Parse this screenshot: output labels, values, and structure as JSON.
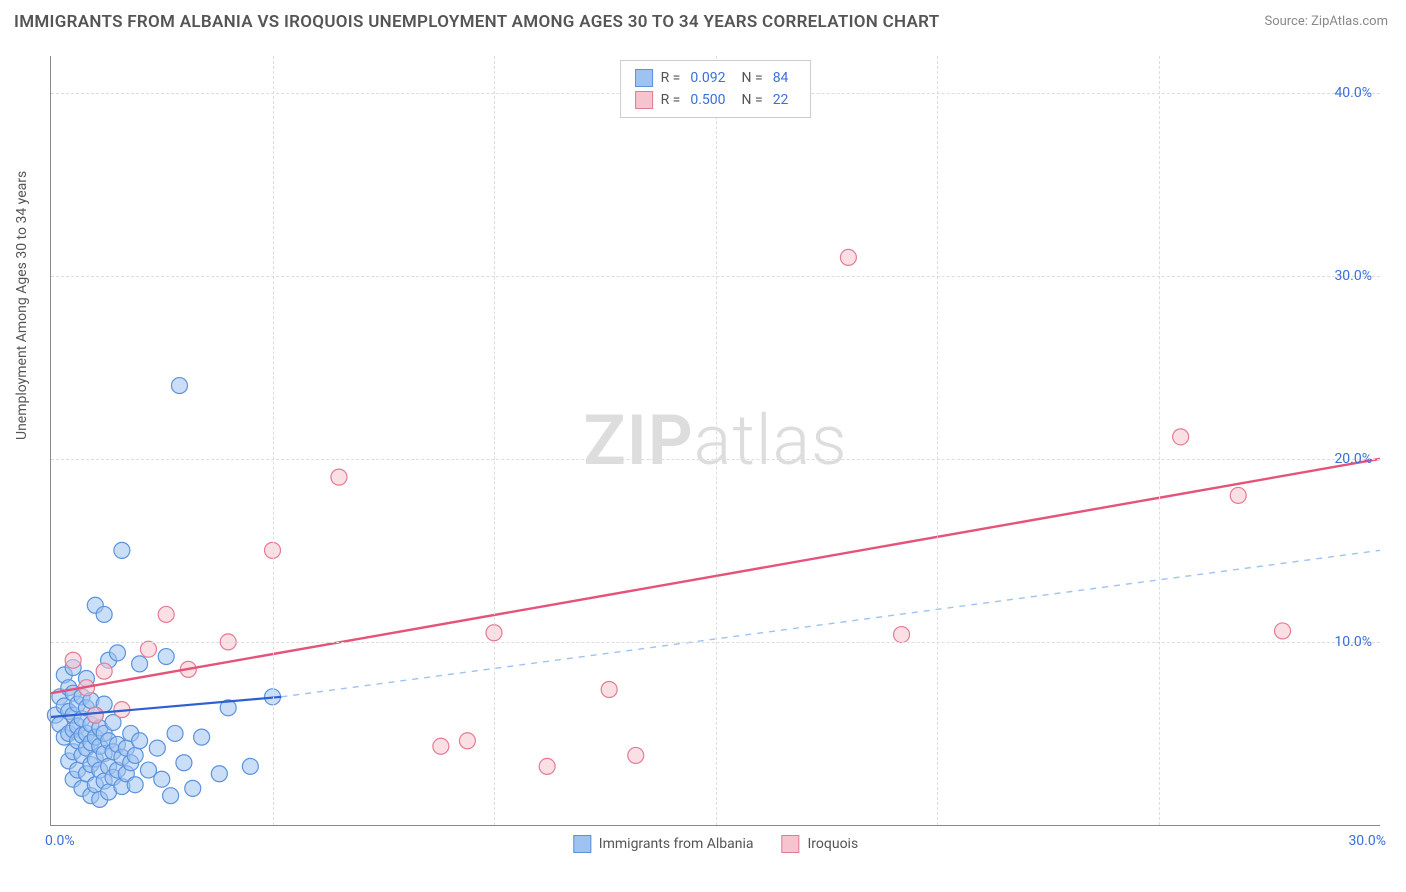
{
  "title": "IMMIGRANTS FROM ALBANIA VS IROQUOIS UNEMPLOYMENT AMONG AGES 30 TO 34 YEARS CORRELATION CHART",
  "source_label": "Source: ZipAtlas.com",
  "watermark_a": "ZIP",
  "watermark_b": "atlas",
  "y_axis_label": "Unemployment Among Ages 30 to 34 years",
  "chart": {
    "type": "scatter",
    "background_color": "#ffffff",
    "grid_color": "#dddddd",
    "axis_color": "#888888",
    "tick_label_color": "#3b6fd8",
    "xlim": [
      0,
      30
    ],
    "ylim": [
      0,
      42
    ],
    "x_ticks_major": [
      0,
      30
    ],
    "x_tick_labels_major": [
      "0.0%",
      "30.0%"
    ],
    "x_ticks_minor": [
      5,
      10,
      15,
      20,
      25
    ],
    "y_ticks": [
      10,
      20,
      30,
      40
    ],
    "y_tick_labels": [
      "10.0%",
      "20.0%",
      "30.0%",
      "40.0%"
    ],
    "title_fontsize": 17,
    "label_fontsize": 14,
    "marker_radius": 8,
    "marker_stroke_width": 1.2,
    "series": [
      {
        "name": "Immigrants from Albania",
        "fill_color": "#9fc3f0",
        "stroke_color": "#5a93dd",
        "line_color": "#2f5fd0",
        "line_dash": "none",
        "line_width": 2.2,
        "dash_extension_color": "#9fc3f0",
        "r_value": "0.092",
        "n_value": "84",
        "trend": {
          "x1": 0,
          "y1": 5.9,
          "x2": 5.2,
          "y2": 7.0,
          "ext_x2": 30,
          "ext_y2": 15.0
        },
        "points": [
          [
            0.1,
            6.0
          ],
          [
            0.2,
            5.5
          ],
          [
            0.2,
            7.0
          ],
          [
            0.3,
            4.8
          ],
          [
            0.3,
            6.5
          ],
          [
            0.3,
            8.2
          ],
          [
            0.4,
            3.5
          ],
          [
            0.4,
            5.0
          ],
          [
            0.4,
            6.2
          ],
          [
            0.4,
            7.5
          ],
          [
            0.5,
            2.5
          ],
          [
            0.5,
            4.0
          ],
          [
            0.5,
            5.2
          ],
          [
            0.5,
            6.0
          ],
          [
            0.5,
            7.2
          ],
          [
            0.5,
            8.6
          ],
          [
            0.6,
            3.0
          ],
          [
            0.6,
            4.6
          ],
          [
            0.6,
            5.4
          ],
          [
            0.6,
            6.6
          ],
          [
            0.7,
            2.0
          ],
          [
            0.7,
            3.8
          ],
          [
            0.7,
            4.9
          ],
          [
            0.7,
            5.8
          ],
          [
            0.7,
            7.0
          ],
          [
            0.8,
            2.8
          ],
          [
            0.8,
            4.2
          ],
          [
            0.8,
            5.0
          ],
          [
            0.8,
            6.4
          ],
          [
            0.8,
            8.0
          ],
          [
            0.9,
            1.6
          ],
          [
            0.9,
            3.3
          ],
          [
            0.9,
            4.5
          ],
          [
            0.9,
            5.5
          ],
          [
            0.9,
            6.8
          ],
          [
            1.0,
            2.2
          ],
          [
            1.0,
            3.6
          ],
          [
            1.0,
            4.8
          ],
          [
            1.0,
            6.0
          ],
          [
            1.0,
            12.0
          ],
          [
            1.1,
            1.4
          ],
          [
            1.1,
            3.0
          ],
          [
            1.1,
            4.3
          ],
          [
            1.1,
            5.3
          ],
          [
            1.2,
            2.4
          ],
          [
            1.2,
            3.9
          ],
          [
            1.2,
            5.0
          ],
          [
            1.2,
            6.6
          ],
          [
            1.3,
            1.8
          ],
          [
            1.3,
            3.2
          ],
          [
            1.3,
            4.6
          ],
          [
            1.3,
            9.0
          ],
          [
            1.4,
            2.6
          ],
          [
            1.4,
            4.0
          ],
          [
            1.4,
            5.6
          ],
          [
            1.5,
            3.0
          ],
          [
            1.5,
            4.4
          ],
          [
            1.5,
            9.4
          ],
          [
            1.6,
            2.1
          ],
          [
            1.6,
            3.7
          ],
          [
            1.6,
            15.0
          ],
          [
            1.7,
            2.8
          ],
          [
            1.7,
            4.2
          ],
          [
            1.8,
            3.4
          ],
          [
            1.8,
            5.0
          ],
          [
            1.9,
            2.2
          ],
          [
            1.9,
            3.8
          ],
          [
            2.0,
            4.6
          ],
          [
            2.0,
            8.8
          ],
          [
            2.2,
            3.0
          ],
          [
            2.4,
            4.2
          ],
          [
            2.5,
            2.5
          ],
          [
            2.6,
            9.2
          ],
          [
            2.7,
            1.6
          ],
          [
            2.8,
            5.0
          ],
          [
            3.0,
            3.4
          ],
          [
            3.2,
            2.0
          ],
          [
            3.4,
            4.8
          ],
          [
            3.8,
            2.8
          ],
          [
            4.0,
            6.4
          ],
          [
            4.5,
            3.2
          ],
          [
            5.0,
            7.0
          ],
          [
            2.9,
            24.0
          ],
          [
            1.2,
            11.5
          ]
        ]
      },
      {
        "name": "Iroquois",
        "fill_color": "#f6c4ce",
        "stroke_color": "#e67a94",
        "line_color": "#e5537a",
        "line_dash": "none",
        "line_width": 2.4,
        "r_value": "0.500",
        "n_value": "22",
        "trend": {
          "x1": 0,
          "y1": 7.2,
          "x2": 30,
          "y2": 20.0
        },
        "points": [
          [
            0.5,
            9.0
          ],
          [
            0.8,
            7.5
          ],
          [
            1.2,
            8.4
          ],
          [
            1.6,
            6.3
          ],
          [
            2.2,
            9.6
          ],
          [
            2.6,
            11.5
          ],
          [
            3.1,
            8.5
          ],
          [
            4.0,
            10.0
          ],
          [
            5.0,
            15.0
          ],
          [
            6.5,
            19.0
          ],
          [
            8.8,
            4.3
          ],
          [
            9.4,
            4.6
          ],
          [
            10.0,
            10.5
          ],
          [
            11.2,
            3.2
          ],
          [
            12.6,
            7.4
          ],
          [
            13.2,
            3.8
          ],
          [
            18.0,
            31.0
          ],
          [
            19.2,
            10.4
          ],
          [
            25.5,
            21.2
          ],
          [
            26.8,
            18.0
          ],
          [
            27.8,
            10.6
          ],
          [
            1.0,
            6.0
          ]
        ]
      }
    ]
  },
  "legend_top": {
    "r_label": "R =",
    "n_label": "N ="
  },
  "legend_bottom": [
    {
      "label": "Immigrants from Albania",
      "fill": "#9fc3f0",
      "stroke": "#5a93dd"
    },
    {
      "label": "Iroquois",
      "fill": "#f6c4ce",
      "stroke": "#e67a94"
    }
  ]
}
